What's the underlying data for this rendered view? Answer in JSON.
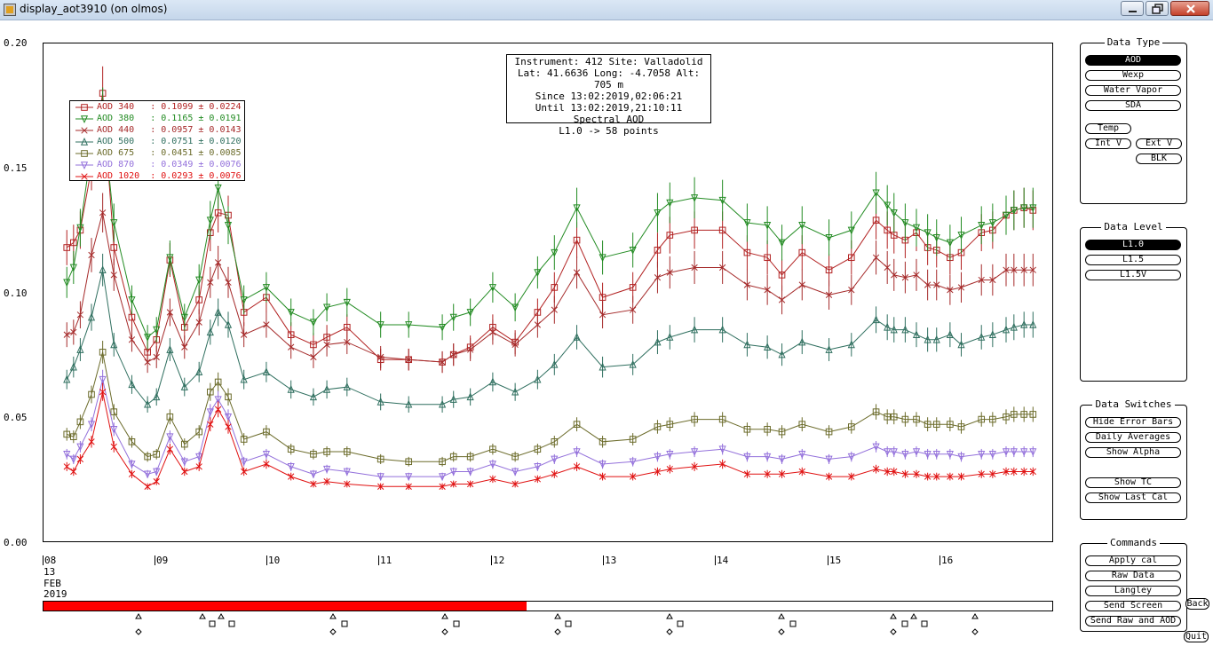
{
  "window": {
    "title": "display_aot3910 (on olmos)"
  },
  "y_axis": {
    "ticks": [
      "0.20",
      "0.15",
      "0.10",
      "0.05",
      "0.00"
    ]
  },
  "x_axis": {
    "ticks": [
      "08",
      "09",
      "10",
      "11",
      "12",
      "13",
      "14",
      "15",
      "16"
    ],
    "date_lines": [
      "13",
      "FEB",
      "2019"
    ]
  },
  "info": {
    "lines": [
      "Instrument: 412 Site: Valladolid",
      "Lat: 41.6636 Long: -4.7058 Alt: 705 m",
      "Since 13:02:2019,02:06:21",
      "Until 13:02:2019,21:10:11",
      "Spectral AOD",
      "L1.0 -> 58 points"
    ]
  },
  "legend": [
    {
      "text": "AOD 340   : 0.1099 ± 0.0224",
      "color": "#b22222",
      "marker": "square"
    },
    {
      "text": "AOD 380   : 0.1165 ± 0.0191",
      "color": "#228b22",
      "marker": "down"
    },
    {
      "text": "AOD 440   : 0.0957 ± 0.0143",
      "color": "#a52a2a",
      "marker": "x"
    },
    {
      "text": "AOD 500   : 0.0751 ± 0.0120",
      "color": "#2f6f5f",
      "marker": "up"
    },
    {
      "text": "AOD 675   : 0.0451 ± 0.0085",
      "color": "#6b6b2a",
      "marker": "square"
    },
    {
      "text": "AOD 870   : 0.0349 ± 0.0076",
      "color": "#9370db",
      "marker": "down"
    },
    {
      "text": "AOD 1020  : 0.0293 ± 0.0076",
      "color": "#e01010",
      "marker": "x"
    }
  ],
  "timebar": {
    "fill_fraction": 0.479
  },
  "panels": {
    "data_type": {
      "title": "Data Type",
      "aod": "AOD",
      "wexp": "Wexp",
      "water_vapor": "Water Vapor",
      "sda": "SDA",
      "temp": "Temp",
      "int_v": "Int V",
      "ext_v": "Ext V",
      "blk": "BLK"
    },
    "data_level": {
      "title": "Data Level",
      "l10": "L1.0",
      "l15": "L1.5",
      "l15v": "L1.5V"
    },
    "data_switches": {
      "title": "Data Switches",
      "hide_error_bars": "Hide Error Bars",
      "daily_averages": "Daily Averages",
      "show_alpha": "Show Alpha",
      "show_tc": "Show TC",
      "show_last_cal": "Show Last Cal"
    },
    "commands": {
      "title": "Commands",
      "apply_cal": "Apply cal",
      "raw_data": "Raw Data",
      "langley": "Langley",
      "send_screen": "Send Screen",
      "send_raw_and_aod": "Send Raw and AOD"
    }
  },
  "side_buttons": {
    "back": "Back",
    "quit": "Quit"
  },
  "chart_data": {
    "type": "line",
    "ylim": [
      0,
      0.2
    ],
    "x_ticks": [
      8,
      9,
      10,
      11,
      12,
      13,
      14,
      15,
      16
    ],
    "x": [
      8.2,
      8.26,
      8.32,
      8.42,
      8.52,
      8.62,
      8.78,
      8.92,
      9.0,
      9.12,
      9.25,
      9.38,
      9.48,
      9.55,
      9.64,
      9.78,
      9.98,
      10.2,
      10.4,
      10.52,
      10.7,
      11.0,
      11.25,
      11.55,
      11.65,
      11.8,
      12.0,
      12.2,
      12.4,
      12.55,
      12.75,
      12.98,
      13.25,
      13.47,
      13.58,
      13.8,
      14.05,
      14.27,
      14.45,
      14.58,
      14.76,
      15.0,
      15.2,
      15.42,
      15.52,
      15.58,
      15.68,
      15.78,
      15.88,
      15.96,
      16.08,
      16.18,
      16.36,
      16.46,
      16.58,
      16.65,
      16.74,
      16.82
    ],
    "series": [
      {
        "values": [
          0.118,
          0.12,
          0.125,
          0.15,
          0.18,
          0.118,
          0.09,
          0.076,
          0.081,
          0.113,
          0.086,
          0.097,
          0.124,
          0.132,
          0.131,
          0.092,
          0.098,
          0.083,
          0.079,
          0.082,
          0.086,
          0.073,
          0.073,
          0.072,
          0.075,
          0.078,
          0.086,
          0.08,
          0.092,
          0.102,
          0.121,
          0.098,
          0.102,
          0.117,
          0.123,
          0.125,
          0.125,
          0.116,
          0.114,
          0.107,
          0.116,
          0.109,
          0.114,
          0.129,
          0.125,
          0.123,
          0.121,
          0.124,
          0.118,
          0.117,
          0.114,
          0.116,
          0.124,
          0.125,
          0.131,
          0.133,
          0.134,
          0.133
        ],
        "color": "#b22222",
        "marker": "square"
      },
      {
        "values": [
          0.104,
          0.11,
          0.126,
          0.158,
          0.172,
          0.128,
          0.097,
          0.082,
          0.085,
          0.114,
          0.09,
          0.105,
          0.129,
          0.142,
          0.127,
          0.097,
          0.102,
          0.092,
          0.088,
          0.094,
          0.096,
          0.087,
          0.087,
          0.086,
          0.09,
          0.092,
          0.102,
          0.094,
          0.108,
          0.116,
          0.134,
          0.114,
          0.117,
          0.132,
          0.136,
          0.138,
          0.137,
          0.128,
          0.127,
          0.12,
          0.127,
          0.122,
          0.125,
          0.14,
          0.135,
          0.132,
          0.128,
          0.126,
          0.124,
          0.122,
          0.12,
          0.123,
          0.127,
          0.128,
          0.131,
          0.133,
          0.134,
          0.134
        ],
        "color": "#228b22",
        "marker": "down"
      },
      {
        "values": [
          0.083,
          0.084,
          0.091,
          0.115,
          0.132,
          0.107,
          0.081,
          0.072,
          0.074,
          0.092,
          0.078,
          0.088,
          0.104,
          0.112,
          0.104,
          0.083,
          0.087,
          0.078,
          0.074,
          0.079,
          0.08,
          0.074,
          0.073,
          0.072,
          0.075,
          0.077,
          0.084,
          0.079,
          0.087,
          0.093,
          0.108,
          0.091,
          0.093,
          0.106,
          0.108,
          0.11,
          0.11,
          0.103,
          0.101,
          0.097,
          0.103,
          0.099,
          0.101,
          0.114,
          0.11,
          0.107,
          0.106,
          0.107,
          0.103,
          0.103,
          0.101,
          0.102,
          0.105,
          0.105,
          0.109,
          0.109,
          0.109,
          0.109
        ],
        "color": "#a52a2a",
        "marker": "x"
      },
      {
        "values": [
          0.065,
          0.07,
          0.077,
          0.09,
          0.109,
          0.079,
          0.063,
          0.055,
          0.058,
          0.077,
          0.062,
          0.068,
          0.084,
          0.092,
          0.087,
          0.065,
          0.068,
          0.061,
          0.058,
          0.061,
          0.062,
          0.056,
          0.055,
          0.055,
          0.057,
          0.058,
          0.064,
          0.06,
          0.065,
          0.071,
          0.082,
          0.07,
          0.071,
          0.08,
          0.082,
          0.085,
          0.085,
          0.079,
          0.078,
          0.075,
          0.08,
          0.077,
          0.079,
          0.089,
          0.086,
          0.085,
          0.085,
          0.083,
          0.081,
          0.081,
          0.083,
          0.079,
          0.082,
          0.083,
          0.085,
          0.086,
          0.087,
          0.087
        ],
        "color": "#2f6f5f",
        "marker": "up"
      },
      {
        "values": [
          0.043,
          0.042,
          0.048,
          0.059,
          0.076,
          0.052,
          0.04,
          0.034,
          0.035,
          0.05,
          0.039,
          0.044,
          0.06,
          0.064,
          0.058,
          0.041,
          0.044,
          0.037,
          0.035,
          0.036,
          0.036,
          0.033,
          0.032,
          0.032,
          0.034,
          0.034,
          0.037,
          0.034,
          0.037,
          0.04,
          0.047,
          0.04,
          0.041,
          0.046,
          0.047,
          0.049,
          0.049,
          0.045,
          0.045,
          0.044,
          0.047,
          0.044,
          0.046,
          0.052,
          0.05,
          0.05,
          0.049,
          0.049,
          0.047,
          0.047,
          0.047,
          0.046,
          0.049,
          0.049,
          0.05,
          0.051,
          0.051,
          0.051
        ],
        "color": "#6b6b2a",
        "marker": "square"
      },
      {
        "values": [
          0.035,
          0.033,
          0.038,
          0.047,
          0.065,
          0.045,
          0.031,
          0.027,
          0.028,
          0.042,
          0.032,
          0.034,
          0.052,
          0.057,
          0.05,
          0.032,
          0.035,
          0.03,
          0.027,
          0.029,
          0.028,
          0.026,
          0.026,
          0.026,
          0.028,
          0.028,
          0.031,
          0.028,
          0.03,
          0.033,
          0.036,
          0.031,
          0.032,
          0.034,
          0.035,
          0.036,
          0.037,
          0.034,
          0.034,
          0.033,
          0.035,
          0.033,
          0.034,
          0.038,
          0.036,
          0.036,
          0.035,
          0.036,
          0.035,
          0.035,
          0.035,
          0.034,
          0.035,
          0.035,
          0.036,
          0.036,
          0.036,
          0.036
        ],
        "color": "#9370db",
        "marker": "down"
      },
      {
        "values": [
          0.03,
          0.028,
          0.033,
          0.04,
          0.06,
          0.038,
          0.027,
          0.022,
          0.024,
          0.037,
          0.028,
          0.03,
          0.047,
          0.053,
          0.046,
          0.028,
          0.031,
          0.026,
          0.023,
          0.024,
          0.023,
          0.022,
          0.022,
          0.022,
          0.023,
          0.023,
          0.025,
          0.023,
          0.025,
          0.027,
          0.03,
          0.026,
          0.026,
          0.028,
          0.029,
          0.03,
          0.031,
          0.027,
          0.027,
          0.027,
          0.028,
          0.026,
          0.026,
          0.029,
          0.028,
          0.028,
          0.027,
          0.027,
          0.026,
          0.026,
          0.026,
          0.026,
          0.027,
          0.027,
          0.028,
          0.028,
          0.028,
          0.028
        ],
        "color": "#e01010",
        "marker": "x"
      }
    ]
  }
}
